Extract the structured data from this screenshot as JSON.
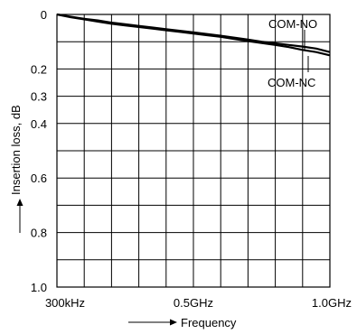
{
  "chart_data": {
    "type": "line",
    "title": "",
    "xlabel": "Frequency",
    "ylabel": "Insertion loss, dB",
    "x_scale": "linear",
    "y_inverted": true,
    "xlim": [
      0.0003,
      1.0
    ],
    "ylim": [
      0,
      1.0
    ],
    "grid": true,
    "x_ticks": [
      {
        "value": 0.0003,
        "label": "300kHz"
      },
      {
        "value": 0.5,
        "label": "0.5GHz"
      },
      {
        "value": 1.0,
        "label": "1.0GHz"
      }
    ],
    "y_ticks": [
      {
        "value": 0,
        "label": "0"
      },
      {
        "value": 0.2,
        "label": "0.2"
      },
      {
        "value": 0.3,
        "label": "0.3"
      },
      {
        "value": 0.4,
        "label": "0.4"
      },
      {
        "value": 0.6,
        "label": "0.6"
      },
      {
        "value": 0.8,
        "label": "0.8"
      },
      {
        "value": 1.0,
        "label": "1.0"
      }
    ],
    "series": [
      {
        "name": "COM-NO",
        "x": [
          0.0003,
          0.05,
          0.1,
          0.15,
          0.2,
          0.25,
          0.3,
          0.35,
          0.4,
          0.45,
          0.5,
          0.55,
          0.6,
          0.65,
          0.7,
          0.75,
          0.8,
          0.85,
          0.9,
          0.95,
          1.0
        ],
        "y": [
          0.0,
          0.008,
          0.016,
          0.022,
          0.03,
          0.036,
          0.042,
          0.048,
          0.054,
          0.06,
          0.066,
          0.072,
          0.078,
          0.085,
          0.092,
          0.1,
          0.106,
          0.112,
          0.118,
          0.125,
          0.138
        ]
      },
      {
        "name": "COM-NC",
        "x": [
          0.0003,
          0.05,
          0.1,
          0.15,
          0.2,
          0.25,
          0.3,
          0.35,
          0.4,
          0.45,
          0.5,
          0.55,
          0.6,
          0.65,
          0.7,
          0.75,
          0.8,
          0.85,
          0.9,
          0.95,
          1.0
        ],
        "y": [
          0.0,
          0.01,
          0.018,
          0.026,
          0.034,
          0.04,
          0.046,
          0.052,
          0.058,
          0.064,
          0.07,
          0.076,
          0.082,
          0.09,
          0.098,
          0.105,
          0.112,
          0.12,
          0.13,
          0.138,
          0.15
        ]
      }
    ]
  }
}
